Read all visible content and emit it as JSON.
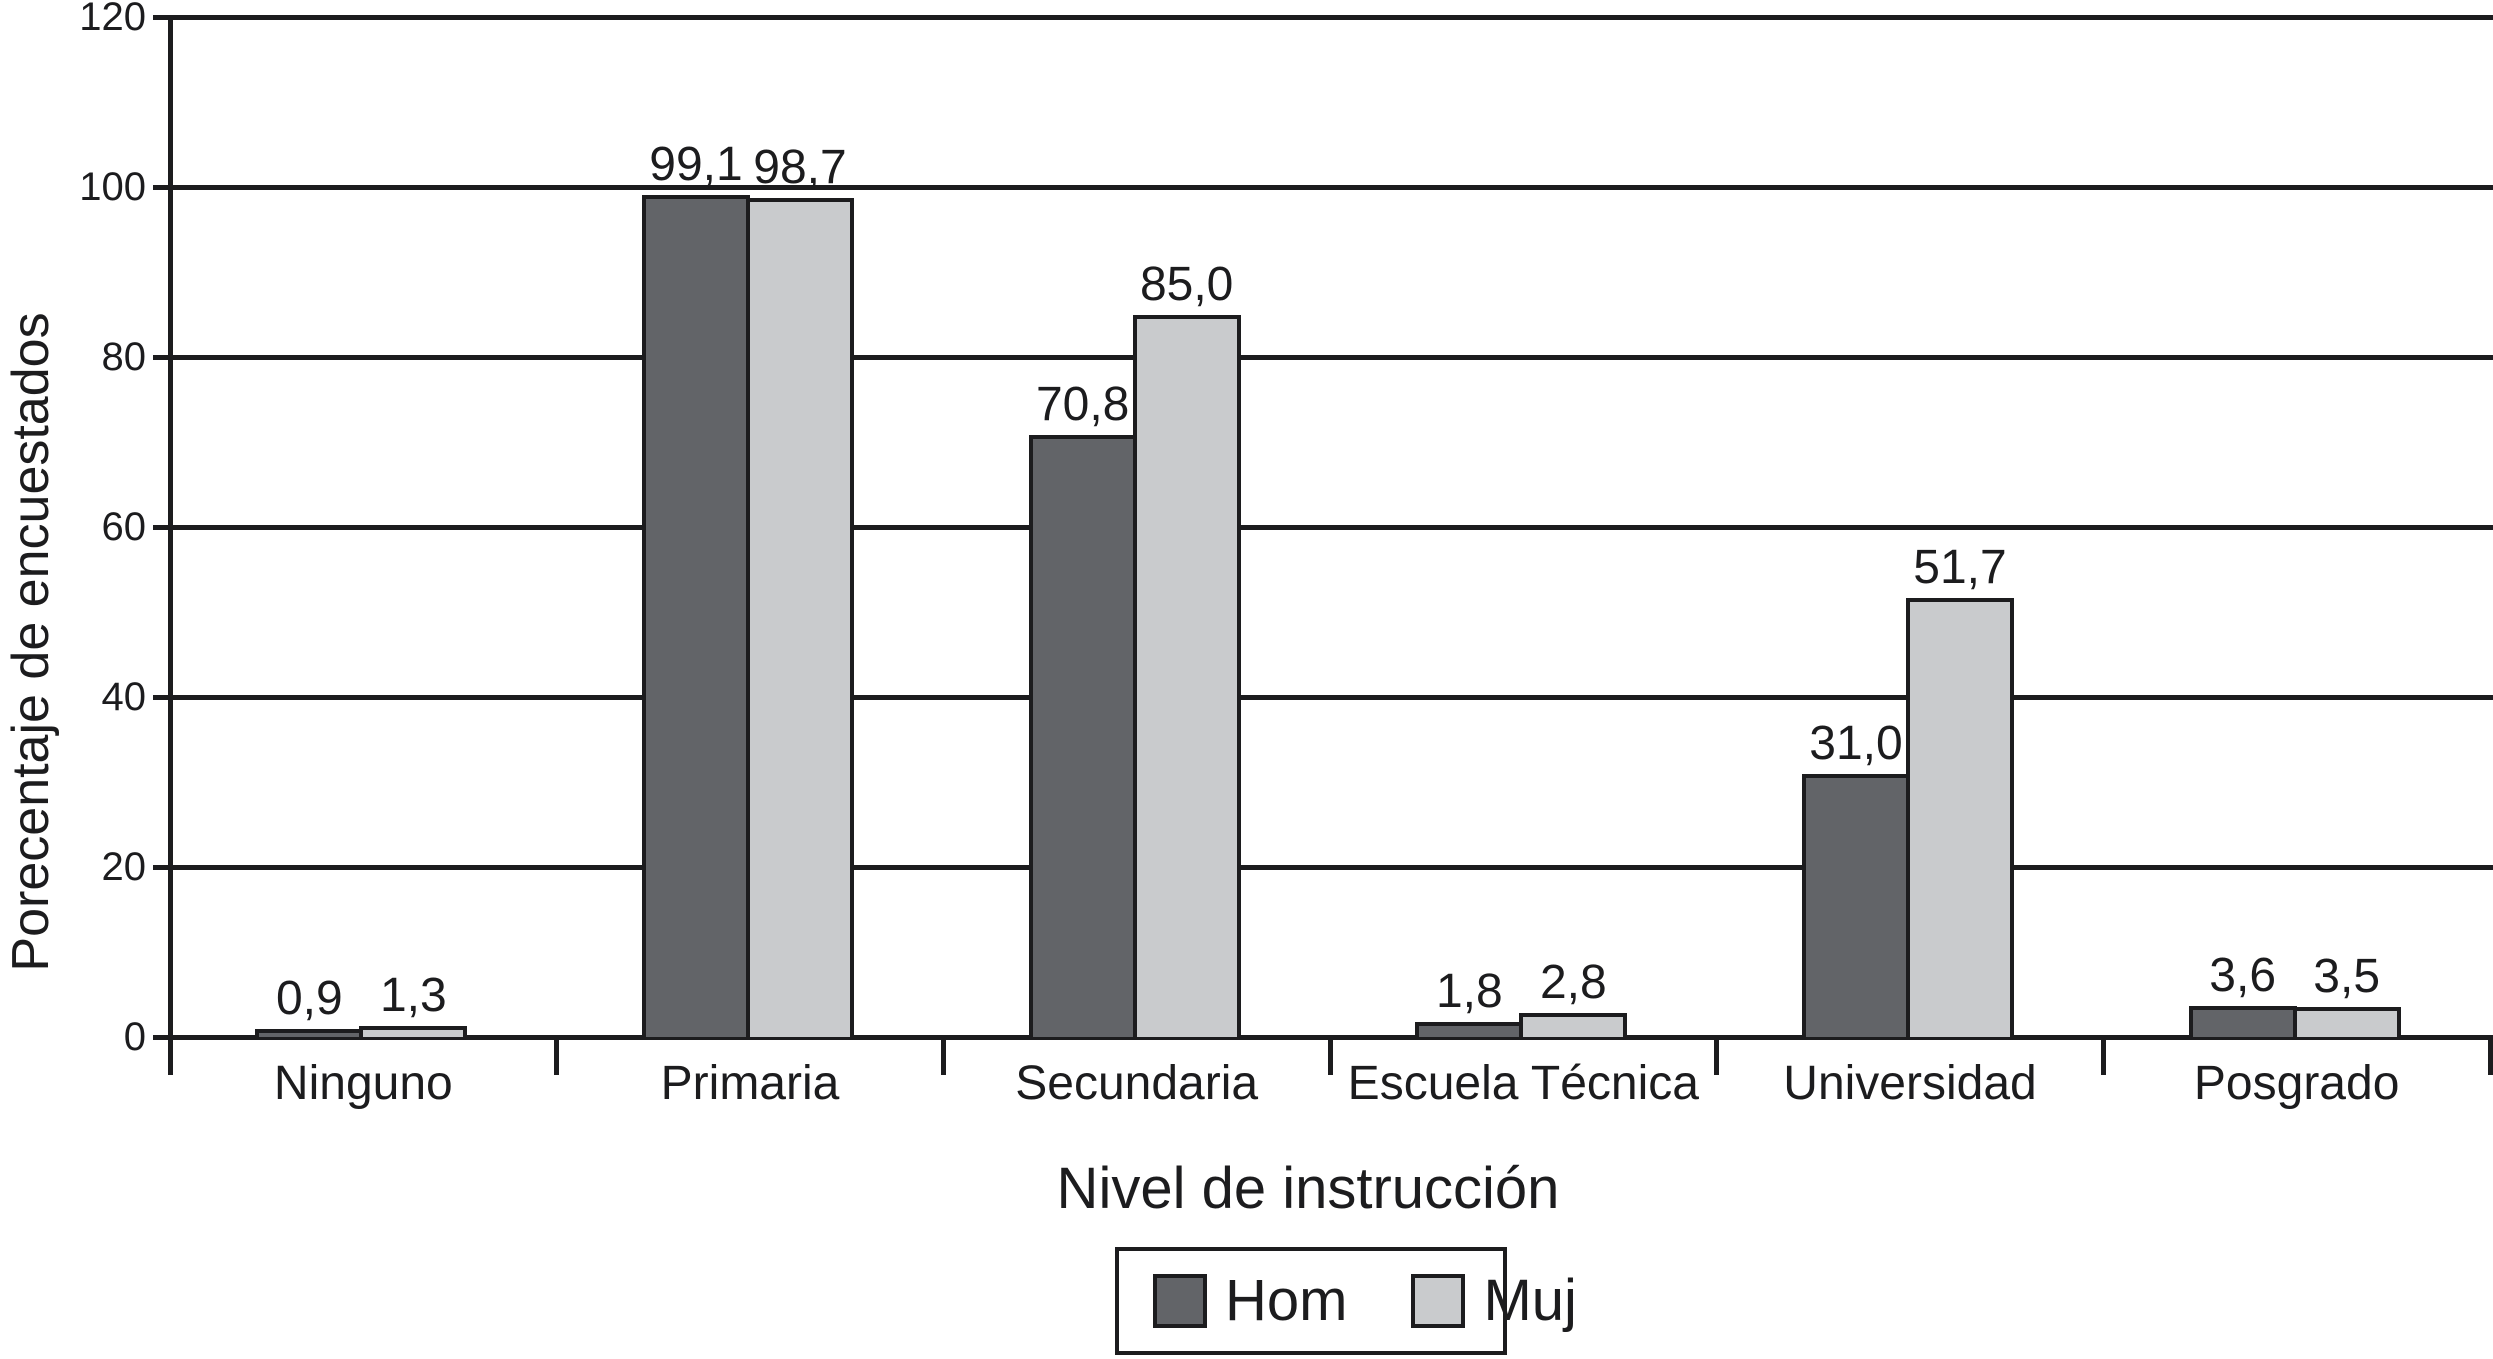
{
  "chart_data": {
    "type": "bar",
    "title": "",
    "xlabel": "Nivel de instrucción",
    "ylabel": "Porecentaje de encuestados",
    "categories": [
      "Ninguno",
      "Primaria",
      "Secundaria",
      "Escuela Técnica",
      "Universidad",
      "Posgrado"
    ],
    "series": [
      {
        "name": "Hom",
        "color": "#626468",
        "values": [
          0.9,
          99.1,
          70.8,
          1.8,
          31.0,
          3.6
        ],
        "labels": [
          "0,9",
          "99,1",
          "70,8",
          "1,8",
          "31,0",
          "3,6"
        ]
      },
      {
        "name": "Muj",
        "color": "#c9cbcd",
        "values": [
          1.3,
          98.7,
          85.0,
          2.8,
          51.7,
          3.5
        ],
        "labels": [
          "1,3",
          "98,7",
          "85,0",
          "2,8",
          "51,7",
          "3,5"
        ]
      }
    ],
    "ylim": [
      0,
      120
    ],
    "yticks": [
      0,
      20,
      40,
      60,
      80,
      100,
      120
    ],
    "ytick_labels": [
      "0",
      "20",
      "40",
      "60",
      "80",
      "100",
      "120"
    ],
    "grid": true,
    "legend_position": "bottom",
    "decimal_separator": ","
  },
  "colors": {
    "ink": "#1c1c1e",
    "background": "#ffffff",
    "hom_bar": "#626468",
    "muj_bar": "#c9cbcd"
  }
}
